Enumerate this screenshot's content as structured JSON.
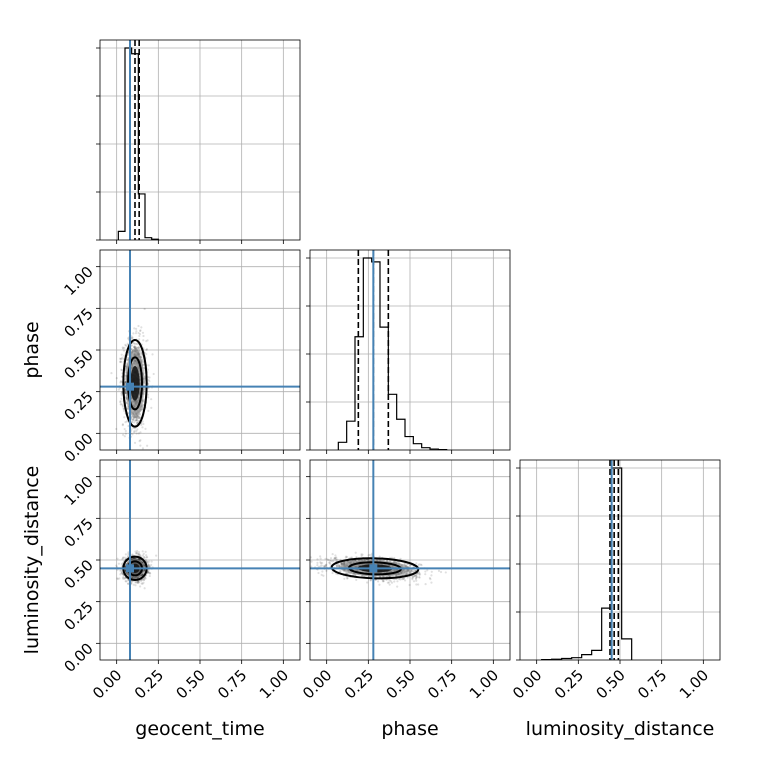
{
  "chart_data": {
    "type": "corner",
    "parameters": [
      "geocent_time",
      "phase",
      "luminosity_distance"
    ],
    "axis_labels": {
      "x": [
        "geocent_time",
        "phase",
        "luminosity_distance"
      ],
      "y": [
        "phase",
        "luminosity_distance"
      ]
    },
    "range": [
      -0.1,
      1.1
    ],
    "ticks": [
      0.0,
      0.25,
      0.5,
      0.75,
      1.0
    ],
    "tick_labels": [
      "0.00",
      "0.25",
      "0.50",
      "0.75",
      "1.00"
    ],
    "grid": true,
    "truths": {
      "geocent_time": 0.08,
      "phase": 0.28,
      "luminosity_distance": 0.45,
      "color": "#4682b4"
    },
    "histograms": [
      {
        "parameter": "geocent_time",
        "bin_edges": [
          0.01,
          0.05,
          0.09,
          0.13,
          0.17,
          0.21,
          0.25
        ],
        "counts": [
          0.045,
          1.0,
          0.97,
          0.24,
          0.012,
          0.004
        ],
        "quantile_lines": [
          0.08,
          0.11,
          0.135
        ]
      },
      {
        "parameter": "phase",
        "bin_edges": [
          0.07,
          0.12,
          0.17,
          0.22,
          0.27,
          0.32,
          0.37,
          0.42,
          0.47,
          0.52,
          0.57,
          0.62,
          0.67,
          0.72
        ],
        "counts": [
          0.04,
          0.15,
          0.59,
          1.0,
          0.98,
          0.64,
          0.29,
          0.16,
          0.07,
          0.033,
          0.012,
          0.005,
          0.002
        ],
        "quantile_lines": [
          0.19,
          0.28,
          0.37
        ]
      },
      {
        "parameter": "luminosity_distance",
        "bin_edges": [
          0.03,
          0.09,
          0.15,
          0.21,
          0.27,
          0.33,
          0.39,
          0.45,
          0.51,
          0.57
        ],
        "counts": [
          0.002,
          0.004,
          0.008,
          0.012,
          0.028,
          0.05,
          0.27,
          1.0,
          0.11
        ],
        "quantile_lines": [
          0.44,
          0.465,
          0.49
        ]
      }
    ],
    "scatter_panels": [
      {
        "x": "geocent_time",
        "y": "phase",
        "center": [
          0.11,
          0.3
        ],
        "spread": [
          0.035,
          0.13
        ],
        "correlation": 0.0,
        "contour_sigma": [
          1.2,
          2.0
        ]
      },
      {
        "x": "geocent_time",
        "y": "luminosity_distance",
        "center": [
          0.11,
          0.45
        ],
        "spread": [
          0.035,
          0.035
        ],
        "correlation": 0.0,
        "contour_sigma": [
          1.2,
          2.0
        ]
      },
      {
        "x": "phase",
        "y": "luminosity_distance",
        "center": [
          0.29,
          0.45
        ],
        "spread": [
          0.13,
          0.03
        ],
        "correlation": -0.35,
        "contour_sigma": [
          1.2,
          2.0
        ]
      }
    ]
  }
}
